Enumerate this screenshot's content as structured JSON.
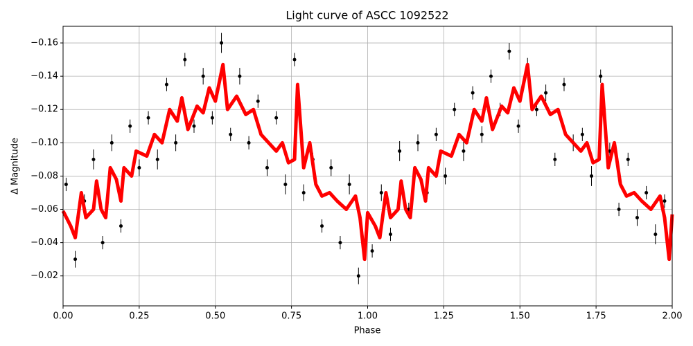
{
  "chart_data": {
    "type": "scatter",
    "title": "Light curve of ASCC 1092522",
    "x_label": "Phase",
    "y_label": "Δ Magnitude",
    "xlim": [
      0,
      2
    ],
    "ylim": [
      -0.002,
      -0.17
    ],
    "grid": true,
    "xticks": [
      {
        "value": 0,
        "label": "0.00"
      },
      {
        "value": 0.25,
        "label": "0.25"
      },
      {
        "value": 0.5,
        "label": "0.50"
      },
      {
        "value": 0.75,
        "label": "0.75"
      },
      {
        "value": 1,
        "label": "1.00"
      },
      {
        "value": 1.25,
        "label": "1.25"
      },
      {
        "value": 1.5,
        "label": "1.50"
      },
      {
        "value": 1.75,
        "label": "1.75"
      },
      {
        "value": 2,
        "label": "2.00"
      }
    ],
    "yticks": [
      {
        "value": -0.02,
        "label": "−0.02"
      },
      {
        "value": -0.04,
        "label": "−0.04"
      },
      {
        "value": -0.06,
        "label": "−0.06"
      },
      {
        "value": -0.08,
        "label": "−0.08"
      },
      {
        "value": -0.1,
        "label": "−0.10"
      },
      {
        "value": -0.12,
        "label": "−0.12"
      },
      {
        "value": -0.14,
        "label": "−0.14"
      },
      {
        "value": -0.16,
        "label": "−0.16"
      }
    ],
    "points": {
      "color": "#000000",
      "x": [
        0.01,
        0.04,
        0.07,
        0.1,
        0.13,
        0.16,
        0.19,
        0.22,
        0.25,
        0.28,
        0.31,
        0.34,
        0.37,
        0.4,
        0.43,
        0.46,
        0.49,
        0.52,
        0.55,
        0.58,
        0.61,
        0.64,
        0.67,
        0.7,
        0.73,
        0.76,
        0.79,
        0.82,
        0.85,
        0.88,
        0.91,
        0.94,
        0.97,
        1.015,
        1.045,
        1.075,
        1.105,
        1.135,
        1.165,
        1.195,
        1.225,
        1.255,
        1.285,
        1.315,
        1.345,
        1.375,
        1.405,
        1.435,
        1.465,
        1.495,
        1.525,
        1.555,
        1.585,
        1.615,
        1.645,
        1.675,
        1.705,
        1.735,
        1.765,
        1.795,
        1.825,
        1.855,
        1.885,
        1.915,
        1.945,
        1.975
      ],
      "values": [
        -0.075,
        -0.03,
        -0.065,
        -0.09,
        -0.04,
        -0.1,
        -0.05,
        -0.11,
        -0.085,
        -0.115,
        -0.09,
        -0.135,
        -0.1,
        -0.15,
        -0.11,
        -0.14,
        -0.115,
        -0.16,
        -0.105,
        -0.14,
        -0.1,
        -0.125,
        -0.085,
        -0.115,
        -0.075,
        -0.15,
        -0.07,
        -0.09,
        -0.05,
        -0.085,
        -0.04,
        -0.075,
        -0.02,
        -0.035,
        -0.07,
        -0.045,
        -0.095,
        -0.06,
        -0.1,
        -0.07,
        -0.105,
        -0.08,
        -0.12,
        -0.095,
        -0.13,
        -0.105,
        -0.14,
        -0.12,
        -0.155,
        -0.11,
        -0.145,
        -0.12,
        -0.13,
        -0.09,
        -0.135,
        -0.1,
        -0.105,
        -0.08,
        -0.14,
        -0.095,
        -0.06,
        -0.09,
        -0.055,
        -0.07,
        -0.045,
        -0.065
      ],
      "errors": [
        0.004,
        0.005,
        0.004,
        0.006,
        0.004,
        0.005,
        0.004,
        0.004,
        0.005,
        0.004,
        0.006,
        0.004,
        0.005,
        0.004,
        0.004,
        0.005,
        0.004,
        0.006,
        0.004,
        0.005,
        0.004,
        0.004,
        0.005,
        0.004,
        0.006,
        0.004,
        0.005,
        0.004,
        0.004,
        0.005,
        0.004,
        0.006,
        0.005,
        0.004,
        0.005,
        0.004,
        0.006,
        0.004,
        0.005,
        0.004,
        0.004,
        0.005,
        0.004,
        0.006,
        0.004,
        0.005,
        0.004,
        0.004,
        0.005,
        0.004,
        0.006,
        0.004,
        0.005,
        0.004,
        0.004,
        0.005,
        0.004,
        0.006,
        0.004,
        0.005,
        0.004,
        0.004,
        0.005,
        0.004,
        0.006,
        0.004
      ]
    },
    "model": {
      "color": "#ff0000",
      "x": [
        0,
        0.025,
        0.04,
        0.06,
        0.075,
        0.1,
        0.11,
        0.125,
        0.14,
        0.155,
        0.175,
        0.19,
        0.2,
        0.225,
        0.24,
        0.275,
        0.3,
        0.325,
        0.35,
        0.375,
        0.39,
        0.41,
        0.44,
        0.46,
        0.48,
        0.5,
        0.525,
        0.54,
        0.57,
        0.6,
        0.625,
        0.65,
        0.675,
        0.7,
        0.72,
        0.74,
        0.76,
        0.77,
        0.79,
        0.81,
        0.83,
        0.85,
        0.875,
        0.9,
        0.93,
        0.96,
        0.975,
        0.99,
        1,
        1.025,
        1.04,
        1.06,
        1.075,
        1.1,
        1.11,
        1.125,
        1.14,
        1.155,
        1.175,
        1.19,
        1.2,
        1.225,
        1.24,
        1.275,
        1.3,
        1.325,
        1.35,
        1.375,
        1.39,
        1.41,
        1.44,
        1.46,
        1.48,
        1.5,
        1.525,
        1.54,
        1.57,
        1.6,
        1.625,
        1.65,
        1.675,
        1.7,
        1.72,
        1.74,
        1.76,
        1.77,
        1.79,
        1.81,
        1.83,
        1.85,
        1.875,
        1.9,
        1.93,
        1.96,
        1.975,
        1.99,
        2
      ],
      "values": [
        -0.059,
        -0.05,
        -0.043,
        -0.07,
        -0.055,
        -0.06,
        -0.077,
        -0.06,
        -0.055,
        -0.085,
        -0.078,
        -0.065,
        -0.085,
        -0.08,
        -0.095,
        -0.092,
        -0.105,
        -0.1,
        -0.12,
        -0.113,
        -0.127,
        -0.108,
        -0.122,
        -0.118,
        -0.133,
        -0.125,
        -0.147,
        -0.12,
        -0.128,
        -0.117,
        -0.12,
        -0.105,
        -0.1,
        -0.095,
        -0.1,
        -0.088,
        -0.09,
        -0.135,
        -0.085,
        -0.1,
        -0.075,
        -0.068,
        -0.07,
        -0.065,
        -0.06,
        -0.068,
        -0.055,
        -0.03,
        -0.058,
        -0.05,
        -0.043,
        -0.07,
        -0.055,
        -0.06,
        -0.077,
        -0.06,
        -0.055,
        -0.085,
        -0.078,
        -0.065,
        -0.085,
        -0.08,
        -0.095,
        -0.092,
        -0.105,
        -0.1,
        -0.12,
        -0.113,
        -0.127,
        -0.108,
        -0.122,
        -0.118,
        -0.133,
        -0.125,
        -0.147,
        -0.12,
        -0.128,
        -0.117,
        -0.12,
        -0.105,
        -0.1,
        -0.095,
        -0.1,
        -0.088,
        -0.09,
        -0.135,
        -0.085,
        -0.1,
        -0.075,
        -0.068,
        -0.07,
        -0.065,
        -0.06,
        -0.068,
        -0.055,
        -0.03,
        -0.057
      ]
    }
  }
}
